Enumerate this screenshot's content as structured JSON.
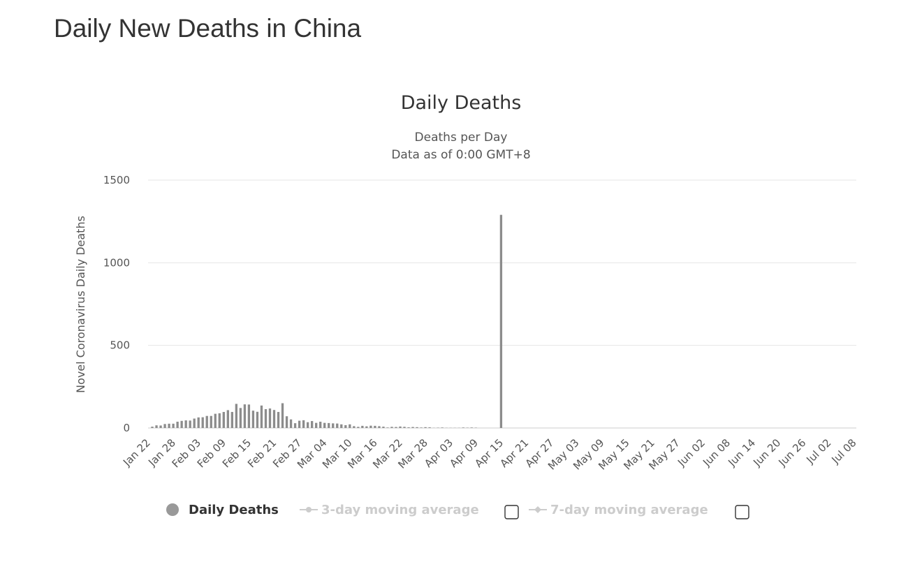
{
  "page": {
    "title": "Daily New Deaths in China"
  },
  "colors": {
    "bar": "#8c8c8c",
    "grid": "#e6e6e6",
    "axis_line": "#cccccc",
    "legend_active": "#333333",
    "legend_inactive": "#cccccc",
    "legend_marker": "#999999"
  },
  "chart_data": {
    "type": "bar",
    "title": "Daily Deaths",
    "subtitle_lines": [
      "Deaths per Day",
      "Data as of 0:00 GMT+8"
    ],
    "xlabel": "",
    "ylabel": "Novel Coronavirus Daily Deaths",
    "ylim": [
      0,
      1500
    ],
    "y_ticks": [
      0,
      500,
      1000,
      1500
    ],
    "grid": true,
    "x_tick_labels": [
      "Jan 22",
      "Jan 28",
      "Feb 03",
      "Feb 09",
      "Feb 15",
      "Feb 21",
      "Feb 27",
      "Mar 04",
      "Mar 10",
      "Mar 16",
      "Mar 22",
      "Mar 28",
      "Apr 03",
      "Apr 09",
      "Apr 15",
      "Apr 21",
      "Apr 27",
      "May 03",
      "May 09",
      "May 15",
      "May 21",
      "May 27",
      "Jun 02",
      "Jun 08",
      "Jun 14",
      "Jun 20",
      "Jun 26",
      "Jul 02",
      "Jul 08"
    ],
    "x_tick_every_days": 6,
    "series": [
      {
        "name": "Daily Deaths",
        "start_date": "Jan 22",
        "values": [
          0,
          8,
          16,
          15,
          24,
          26,
          26,
          38,
          43,
          46,
          45,
          57,
          64,
          65,
          73,
          73,
          86,
          89,
          97,
          108,
          97,
          146,
          121,
          143,
          142,
          105,
          98,
          136,
          114,
          118,
          109,
          97,
          150,
          71,
          52,
          29,
          44,
          47,
          35,
          42,
          31,
          38,
          31,
          30,
          28,
          27,
          22,
          17,
          22,
          11,
          7,
          13,
          10,
          14,
          13,
          11,
          8,
          3,
          7,
          6,
          9,
          7,
          4,
          6,
          5,
          3,
          5,
          4,
          1,
          2,
          3,
          1,
          1,
          1,
          1,
          3,
          2,
          3,
          2,
          0,
          0,
          0,
          0,
          0,
          1290,
          0,
          0,
          0,
          0,
          0,
          0,
          0,
          0,
          0,
          0,
          0,
          0,
          0,
          0,
          0,
          0,
          0,
          0,
          0,
          0,
          0,
          0,
          0,
          0,
          0,
          0,
          0,
          0,
          0,
          0,
          0,
          0,
          0,
          0,
          0,
          0,
          0,
          0,
          0,
          0,
          0,
          0,
          0,
          0,
          0,
          0,
          0,
          0,
          0,
          0,
          0,
          0,
          0,
          0,
          0,
          0,
          0,
          0,
          0,
          0,
          0,
          0,
          0,
          0,
          0,
          0,
          0,
          0,
          0,
          0,
          0,
          0,
          0,
          0,
          0,
          0,
          0,
          0,
          0,
          0,
          0,
          0,
          0,
          0,
          0,
          0,
          0,
          0,
          0,
          0,
          0
        ]
      }
    ],
    "legend": {
      "placement": "bottom-left",
      "items": [
        {
          "label": "Daily Deaths",
          "marker": "circle",
          "active": true,
          "checkbox": false
        },
        {
          "label": "3-day moving average",
          "marker": "line-dot",
          "active": false,
          "checkbox": true
        },
        {
          "label": "7-day moving average",
          "marker": "line-diamond",
          "active": false,
          "checkbox": true
        }
      ]
    }
  }
}
